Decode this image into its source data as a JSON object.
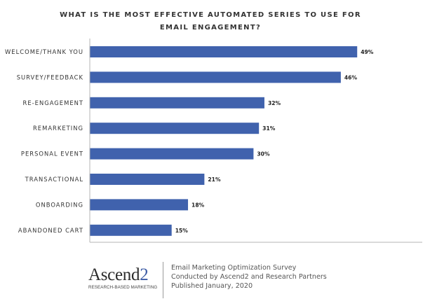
{
  "title_line1": "WHAT IS THE MOST EFFECTIVE AUTOMATED SERIES TO USE FOR",
  "title_line2": "EMAIL ENGAGEMENT?",
  "chart_data": {
    "type": "bar",
    "orientation": "horizontal",
    "categories": [
      "WELCOME/THANK YOU",
      "SURVEY/FEEDBACK",
      "RE-ENGAGEMENT",
      "REMARKETING",
      "PERSONAL EVENT",
      "TRANSACTIONAL",
      "ONBOARDING",
      "ABANDONED CART"
    ],
    "values": [
      49,
      46,
      32,
      31,
      30,
      21,
      18,
      15
    ],
    "value_labels": [
      "49%",
      "46%",
      "32%",
      "31%",
      "30%",
      "21%",
      "18%",
      "15%"
    ],
    "title": "WHAT IS THE MOST EFFECTIVE AUTOMATED SERIES TO USE FOR EMAIL ENGAGEMENT?",
    "xlabel": "",
    "ylabel": "",
    "xlim": [
      0,
      60
    ],
    "grid": false,
    "legend": "none",
    "bar_color": "#4062ad"
  },
  "colors": {
    "bar": "#4062ad",
    "axis": "#b5b5b5",
    "brand_accent": "#3b5ba5"
  },
  "footer": {
    "logo_word": "Ascend",
    "logo_number": "2",
    "logo_tagline": "RESEARCH-BASED MARKETING",
    "line1": "Email Marketing Optimization Survey",
    "line2": "Conducted by Ascend2 and Research Partners",
    "line3": "Published January, 2020"
  }
}
